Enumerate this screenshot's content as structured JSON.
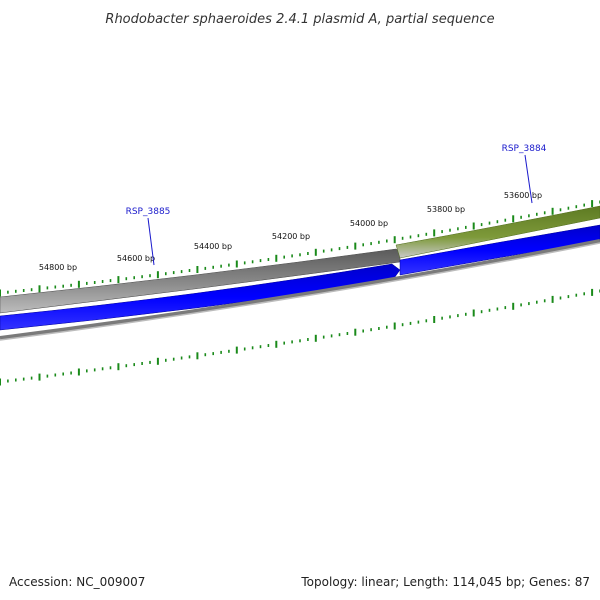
{
  "title": "Rhodobacter sphaeroides 2.4.1 plasmid A, partial sequence",
  "footer": {
    "accession": "Accession: NC_009007",
    "topology": "Topology: linear; Length: 114,045 bp; Genes: 87"
  },
  "bp_labels": [
    "54800 bp",
    "54600 bp",
    "54400 bp",
    "54200 bp",
    "54000 bp",
    "53800 bp",
    "53600 bp"
  ],
  "genes": [
    {
      "name": "RSP_3885"
    },
    {
      "name": "RSP_3884"
    }
  ],
  "colors": {
    "tick": "#1a8a1a",
    "gene_gray": "#6e6e6e",
    "gene_green": "#6e8a2a",
    "cds_blue": "#0000ee",
    "label_blue": "#1a1acc"
  }
}
